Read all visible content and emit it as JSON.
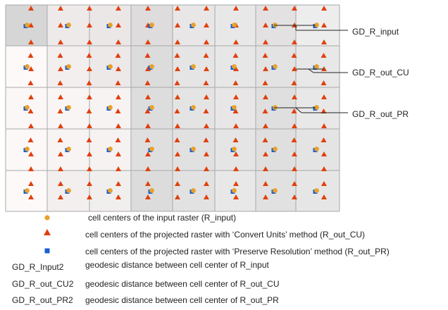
{
  "colors": {
    "input_center": "#e8a12a",
    "convert_units_center": "#e0400e",
    "preserve_resolution_center": "#1a5fd0",
    "grid_line": "#a8a8a8",
    "annotation_line": "#222222"
  },
  "grid": {
    "columns": 8,
    "rows": 5
  },
  "callouts": [
    {
      "label": "GD_R_input"
    },
    {
      "label": "GD_R_out_CU"
    },
    {
      "label": "GD_R_out_PR"
    }
  ],
  "legend": [
    {
      "symbol": "circle",
      "text": "cell centers of the input raster (R_input)"
    },
    {
      "symbol": "triangle",
      "text": "cell centers of the projected raster with ‘Convert Units’ method (R_out_CU)"
    },
    {
      "symbol": "square",
      "text": "cell centers of the projected raster with ‘Preserve Resolution’ method (R_out_PR)"
    }
  ],
  "definitions": [
    {
      "term": "GD_R_Input2",
      "text": "geodesic distance between cell center of R_input"
    },
    {
      "term": "GD_R_out_CU2",
      "text": "geodesic distance between cell center of R_out_CU"
    },
    {
      "term": "GD_R_out_PR2",
      "text": "geodesic distance between cell center of R_out_PR"
    }
  ]
}
